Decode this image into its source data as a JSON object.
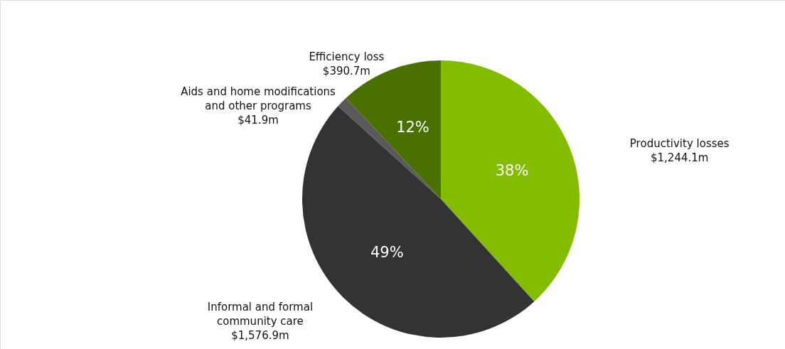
{
  "chart_data": {
    "type": "pie",
    "categories": [
      "Productivity losses",
      "Informal and formal\ncommunity care",
      "Aids and home modifications\nand other programs",
      "Efficiency loss"
    ],
    "values": [
      1244.1,
      1576.9,
      41.9,
      390.7
    ],
    "colors": [
      "#84bd00",
      "#333333",
      "#5a5a5a",
      "#4a7000"
    ],
    "value_labels": [
      "$1,244.1m",
      "$1,576.9m",
      "$41.9m",
      "$390.7m"
    ],
    "annotations": [
      {
        "text": "38%",
        "x": "Productivity losses"
      },
      {
        "text": "49%",
        "x": "Informal and formal\ncommunity care"
      },
      {
        "text": "12%",
        "x": "Efficiency loss"
      }
    ]
  }
}
